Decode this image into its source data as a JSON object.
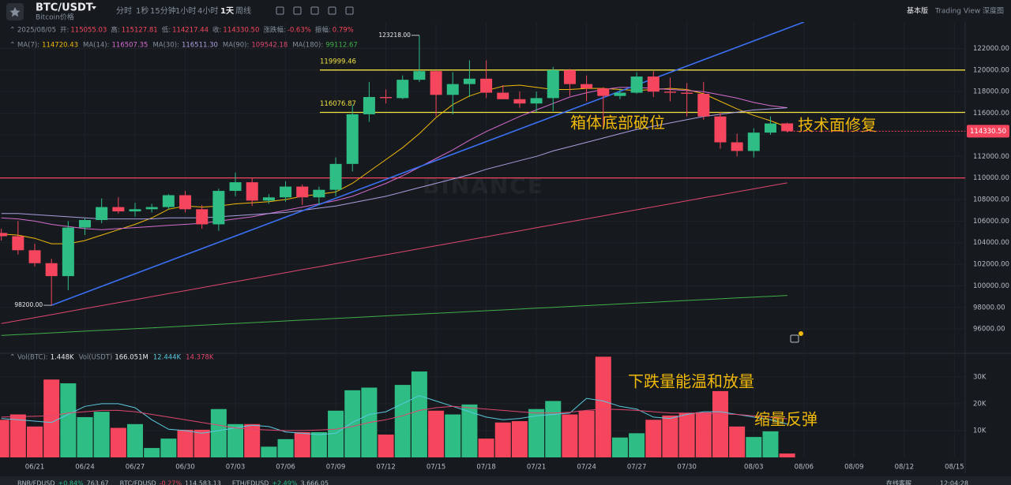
{
  "header": {
    "symbol": "BTC/USDT",
    "name": "Bitcoin价格",
    "intervals": [
      "分时",
      "1秒",
      "15分钟",
      "1小时",
      "4小时",
      "1天",
      "周线"
    ],
    "views": [
      "基本版",
      "Trading View",
      "深度图"
    ],
    "watermark": "BINANCE"
  },
  "ohlc_bar": {
    "date": "2025/08/05",
    "fields": [
      {
        "label": "开:",
        "value": "115055.03"
      },
      {
        "label": "高:",
        "value": "115127.81"
      },
      {
        "label": "低:",
        "value": "114217.44"
      },
      {
        "label": "收:",
        "value": "114330.50"
      },
      {
        "label": "涨跌幅:",
        "value": "-0.63%"
      },
      {
        "label": "振幅:",
        "value": "0.79%"
      }
    ]
  },
  "ma_values": [
    "114720.43",
    "116507.35",
    "116511.30",
    "109542.18",
    "99112.67"
  ],
  "vol_bar": {
    "fields": [
      {
        "label": "Vol(BTC):",
        "value": "1.448K"
      },
      {
        "label": "Vol(USDT)",
        "value": "166.051M"
      }
    ],
    "line_values": [
      "12.444K",
      "14.378K"
    ]
  },
  "ticker": [
    {
      "symbol": "BNB/FDUSD",
      "change": "+0.84%",
      "price": "763.67"
    },
    {
      "symbol": "BTC/FDUSD",
      "change": "-0.27%",
      "price": "114,583.13"
    },
    {
      "symbol": "ETH/FDUSD",
      "change": "+2.49%",
      "price": "3,666.05"
    }
  ],
  "footer": [
    "在线客服",
    "12:04:28"
  ],
  "chart_data": [
    {
      "type": "candlestick",
      "up_color": "#2ebd85",
      "down_color": "#f6465d",
      "categories": [
        null,
        null,
        "06/21",
        null,
        null,
        "06/24",
        null,
        null,
        "06/27",
        null,
        null,
        "06/30",
        null,
        null,
        "07/03",
        null,
        null,
        "07/06",
        null,
        null,
        "07/09",
        null,
        null,
        "07/12",
        null,
        null,
        "07/15",
        null,
        null,
        "07/18",
        null,
        null,
        "07/21",
        null,
        null,
        "07/24",
        null,
        null,
        "07/27",
        null,
        null,
        "07/30",
        null,
        null,
        null,
        "08/03",
        null,
        null
      ],
      "xticks_future": [
        "08/06",
        "08/09",
        "08/12",
        "08/15"
      ],
      "open": [
        104900,
        104600,
        103300,
        102100,
        100900,
        105400,
        106100,
        107300,
        106900,
        107100,
        107300,
        108400,
        107100,
        105700,
        108800,
        109600,
        107900,
        108200,
        109200,
        108200,
        108900,
        111300,
        115900,
        117500,
        117400,
        119100,
        119900,
        117700,
        118700,
        119200,
        117900,
        117300,
        116900,
        117400,
        120000,
        118700,
        118300,
        117600,
        117900,
        119400,
        118000,
        117900,
        117800,
        115700,
        113300,
        112500,
        114200,
        115055.03
      ],
      "high": [
        105300,
        106000,
        103900,
        102500,
        106000,
        106300,
        108100,
        108200,
        107700,
        107600,
        108500,
        108800,
        107500,
        109000,
        110500,
        110000,
        108500,
        109700,
        109400,
        109200,
        111900,
        116800,
        118900,
        118200,
        119500,
        123218,
        120000,
        119800,
        120900,
        120900,
        118600,
        118000,
        118000,
        120300,
        120100,
        119500,
        118400,
        118300,
        119800,
        119900,
        119300,
        118800,
        118900,
        116100,
        114100,
        114600,
        115700,
        115127.81
      ],
      "low": [
        104200,
        102900,
        101800,
        98200,
        99600,
        104700,
        105800,
        106700,
        106400,
        106800,
        107100,
        106800,
        105300,
        105100,
        108300,
        107400,
        107600,
        107800,
        107500,
        107500,
        108300,
        110600,
        115200,
        116900,
        117300,
        118900,
        115700,
        115900,
        117500,
        117400,
        117300,
        116500,
        116100,
        116200,
        117600,
        117100,
        114700,
        117300,
        117800,
        117500,
        117100,
        115700,
        115400,
        112700,
        112000,
        111900,
        114000,
        114217.44
      ],
      "close": [
        104600,
        103300,
        102100,
        100900,
        105400,
        106100,
        107300,
        106900,
        107100,
        107300,
        108400,
        107100,
        105700,
        108800,
        109600,
        107900,
        108200,
        109200,
        108200,
        108900,
        111300,
        115900,
        117500,
        117400,
        119100,
        119900,
        117700,
        118700,
        119200,
        117900,
        117300,
        116900,
        117400,
        120000,
        118700,
        118300,
        117600,
        117900,
        119400,
        118000,
        117900,
        117800,
        115700,
        113300,
        112500,
        114200,
        115050,
        114330.5
      ],
      "lines": [
        {
          "name": "MA(7):",
          "color": "#f0b90b",
          "values": [
            104800,
            104700,
            104400,
            103900,
            103900,
            104200,
            104700,
            105200,
            105700,
            106300,
            107100,
            107400,
            107300,
            107400,
            107600,
            107700,
            107800,
            108000,
            108300,
            108500,
            108700,
            109500,
            110600,
            111700,
            112800,
            114100,
            115600,
            116800,
            117600,
            118100,
            118500,
            118600,
            118400,
            118200,
            118200,
            118300,
            118300,
            118200,
            118100,
            118200,
            118300,
            118200,
            117800,
            117100,
            116400,
            115800,
            115300,
            114720.43
          ]
        },
        {
          "name": "MA(14):",
          "color": "#d66bd0",
          "values": [
            106300,
            106200,
            106000,
            105700,
            105500,
            105300,
            105200,
            105300,
            105400,
            105500,
            105600,
            105700,
            105800,
            106000,
            106200,
            106400,
            106700,
            107000,
            107300,
            107600,
            107900,
            108300,
            108900,
            109500,
            110200,
            111000,
            111800,
            112600,
            113500,
            114300,
            115000,
            115700,
            116300,
            116900,
            117500,
            117900,
            118200,
            118400,
            118400,
            118300,
            118200,
            118100,
            118000,
            117700,
            117400,
            117000,
            116700,
            116507.35
          ]
        },
        {
          "name": "MA(30):",
          "color": "#a99ee0",
          "values": [
            106700,
            106700,
            106600,
            106500,
            106400,
            106300,
            106200,
            106200,
            106200,
            106200,
            106300,
            106300,
            106300,
            106400,
            106500,
            106600,
            106700,
            106800,
            107000,
            107200,
            107400,
            107700,
            108000,
            108300,
            108700,
            109100,
            109500,
            109900,
            110300,
            110800,
            111200,
            111600,
            112000,
            112500,
            112900,
            113300,
            113700,
            114100,
            114500,
            114800,
            115100,
            115400,
            115700,
            115900,
            116100,
            116300,
            116400,
            116511.3
          ]
        },
        {
          "name": "MA(90):",
          "color": "#e0466f",
          "values": [
            96500,
            96780,
            97060,
            97330,
            97610,
            97890,
            98170,
            98440,
            98720,
            99000,
            99280,
            99550,
            99830,
            100110,
            100390,
            100660,
            100940,
            101220,
            101500,
            101770,
            102050,
            102330,
            102610,
            102880,
            103160,
            103440,
            103720,
            103990,
            104270,
            104550,
            104830,
            105100,
            105380,
            105660,
            105940,
            106210,
            106490,
            106770,
            107050,
            107320,
            107600,
            107880,
            108160,
            108430,
            108710,
            108990,
            109270,
            109542.18
          ]
        },
        {
          "name": "MA(180):",
          "color": "#3fae49",
          "values": [
            95400,
            95480,
            95560,
            95640,
            95720,
            95800,
            95870,
            95950,
            96030,
            96110,
            96190,
            96270,
            96350,
            96430,
            96510,
            96590,
            96660,
            96740,
            96820,
            96900,
            96980,
            97060,
            97140,
            97220,
            97300,
            97380,
            97450,
            97530,
            97610,
            97690,
            97770,
            97850,
            97930,
            98010,
            98090,
            98170,
            98240,
            98320,
            98400,
            98480,
            98560,
            98640,
            98720,
            98800,
            98880,
            98960,
            99030,
            99112.67
          ]
        }
      ],
      "hlines": [
        {
          "value": 119999.46,
          "color": "#f0e040",
          "labeled": true
        },
        {
          "value": 116076.87,
          "color": "#f0e040",
          "labeled": true
        },
        {
          "value": 110000,
          "color": "#f6465d",
          "labeled": false
        }
      ],
      "trendline": {
        "color": "#3a6ff0",
        "from": {
          "index": 3,
          "value": 98200
        },
        "to": {
          "index": 48,
          "value": 124450
        }
      },
      "extremes": [
        {
          "index": 3,
          "value": 98200,
          "label": "98200.00"
        },
        {
          "index": 25,
          "value": 123218,
          "label": "123218.00"
        }
      ],
      "notes": [
        "箱体底部破位",
        "技术面修复"
      ],
      "ylim": [
        93600,
        124300
      ],
      "yticks": [
        {
          "value": 96000,
          "label": "96000.00"
        },
        {
          "value": 98000,
          "label": "98000.00"
        },
        {
          "value": 100000,
          "label": "100000.00"
        },
        {
          "value": 102000,
          "label": "102000.00"
        },
        {
          "value": 104000,
          "label": "104000.00"
        },
        {
          "value": 106000,
          "label": "106000.00"
        },
        {
          "value": 108000,
          "label": "108000.00"
        },
        {
          "value": 110000,
          "label": "110000.00"
        },
        {
          "value": 112000,
          "label": "112000.00"
        },
        {
          "value": 114000,
          "label": "114000.00"
        },
        {
          "value": 116000,
          "label": "116000.00"
        },
        {
          "value": 118000,
          "label": "118000.00"
        },
        {
          "value": 120000,
          "label": "120000.00"
        },
        {
          "value": 122000,
          "label": "122000.00"
        }
      ],
      "grid": true
    },
    {
      "type": "volume",
      "values": [
        14000,
        16000,
        11500,
        29000,
        27600,
        15000,
        17000,
        11000,
        12400,
        3500,
        7000,
        10300,
        10300,
        18000,
        12400,
        12400,
        4000,
        6800,
        9400,
        9400,
        17400,
        25000,
        26000,
        8500,
        27000,
        32000,
        17400,
        16000,
        19700,
        7000,
        13000,
        13500,
        18000,
        21000,
        16000,
        17400,
        37500,
        7400,
        9000,
        14000,
        15600,
        16500,
        16800,
        24700,
        11500,
        7600,
        9700,
        1448
      ],
      "lines": [
        {
          "color": "#5bc8e0",
          "values": [
            14500,
            14000,
            13500,
            13000,
            16000,
            19000,
            20000,
            20000,
            18500,
            14000,
            10500,
            10000,
            9000,
            10000,
            11000,
            12000,
            11500,
            9500,
            9000,
            8500,
            9000,
            13000,
            16000,
            17000,
            20000,
            23000,
            21000,
            19000,
            17000,
            15000,
            14000,
            14500,
            15500,
            16000,
            16500,
            22000,
            21000,
            19000,
            18000,
            15000,
            14500,
            16000,
            17000,
            17000,
            16000,
            15000,
            14000,
            12444
          ]
        },
        {
          "color": "#e0466f",
          "values": [
            15000,
            15200,
            15300,
            15500,
            16500,
            17000,
            17500,
            17500,
            17000,
            16000,
            15000,
            14000,
            13000,
            12000,
            11000,
            10500,
            10200,
            10000,
            10000,
            10200,
            10500,
            11500,
            13000,
            14000,
            15500,
            17500,
            18500,
            19000,
            18500,
            18000,
            17500,
            17000,
            16500,
            16500,
            16800,
            17500,
            18000,
            17800,
            17500,
            17000,
            16500,
            16500,
            16500,
            16200,
            16000,
            15500,
            15000,
            14378
          ]
        }
      ],
      "notes": [
        "下跌量能温和放量",
        "缩量反弹"
      ],
      "ylim": [
        0,
        37600
      ],
      "yticks": [
        {
          "value": 10000,
          "label": "10K"
        },
        {
          "value": 20000,
          "label": "20K"
        },
        {
          "value": 30000,
          "label": "30K"
        }
      ],
      "grid": true
    }
  ]
}
